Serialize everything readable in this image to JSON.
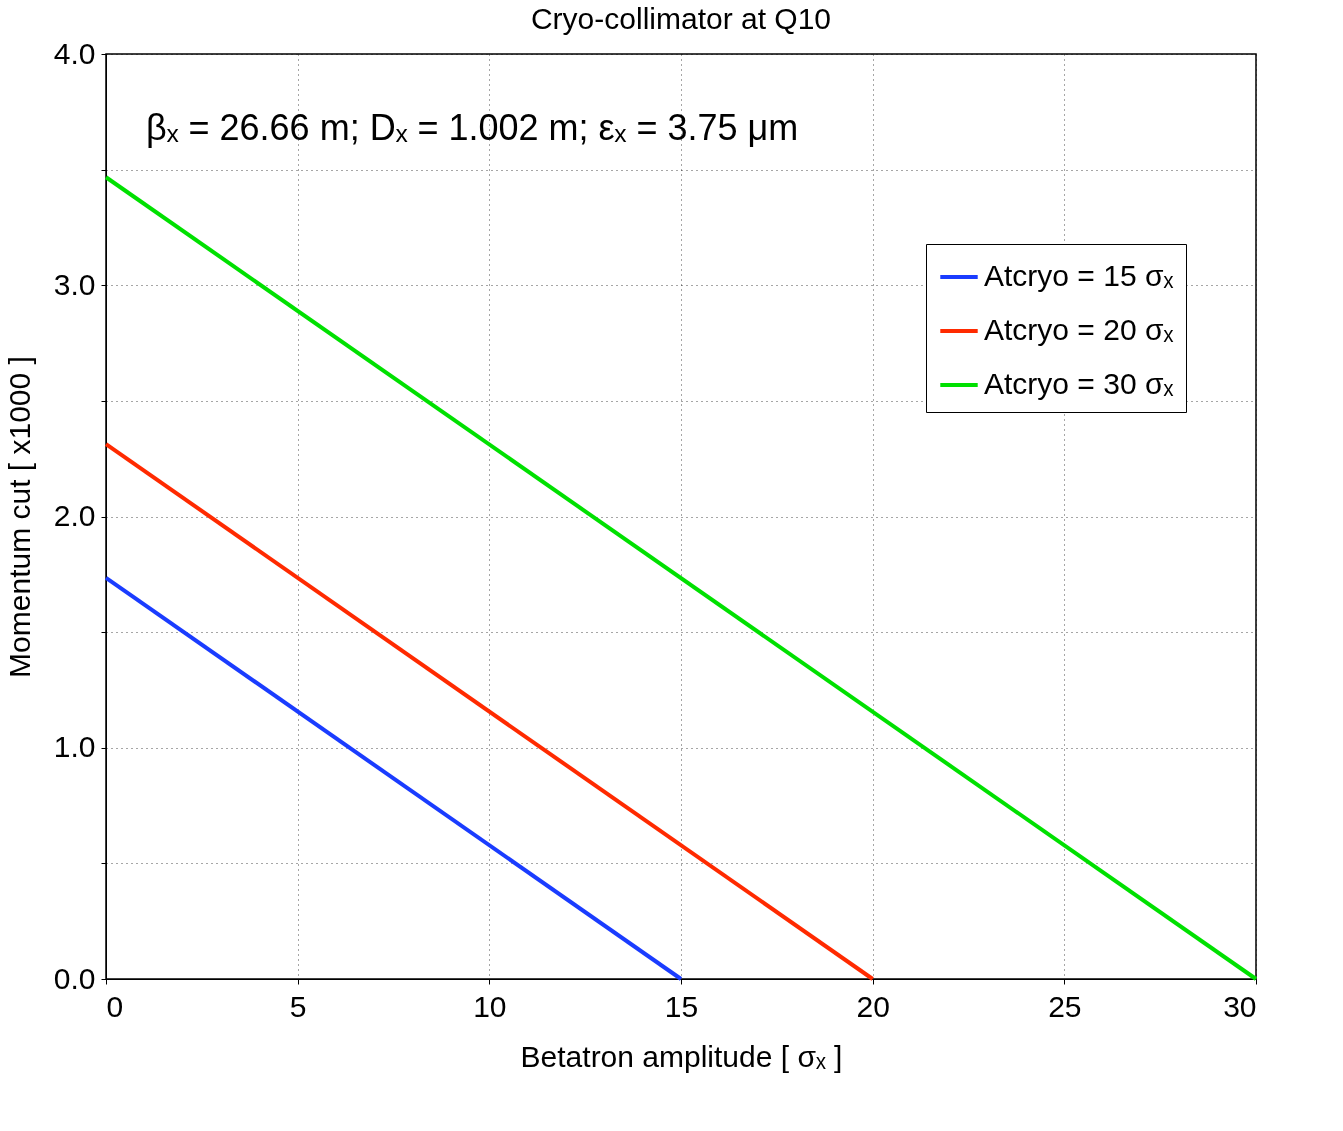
{
  "chart_data": {
    "type": "line",
    "title": "Cryo-collimator at Q10",
    "xlabel": "Betatron amplitude [ σₓ ]",
    "ylabel": "Momentum cut [ x1000 ]",
    "annotations": [
      "βₓ = 26.66 m; Dₓ = 1.002 m; εₓ = 3.75 μm"
    ],
    "series": [
      {
        "name": "Atcryo = 15 σₓ",
        "color": "#1a3cff",
        "x": [
          0,
          15
        ],
        "values": [
          1.735,
          0
        ]
      },
      {
        "name": "Atcryo = 20 σₓ",
        "color": "#ff2a00",
        "x": [
          0,
          20
        ],
        "values": [
          2.313,
          0
        ]
      },
      {
        "name": "Atcryo = 30 σₓ",
        "color": "#00e000",
        "x": [
          0,
          30
        ],
        "values": [
          3.467,
          0
        ]
      }
    ],
    "xlim": [
      0,
      30
    ],
    "xticks": [
      0,
      5,
      10,
      15,
      20,
      25,
      30
    ],
    "ylim": [
      0,
      4
    ],
    "yticks": [
      {
        "value": 0,
        "label": "0.0"
      },
      {
        "value": 0.5,
        "label": null
      },
      {
        "value": 1,
        "label": "1.0"
      },
      {
        "value": 1.5,
        "label": null
      },
      {
        "value": 2,
        "label": "2.0"
      },
      {
        "value": 2.5,
        "label": null
      },
      {
        "value": 3,
        "label": "3.0"
      },
      {
        "value": 3.5,
        "label": null
      },
      {
        "value": 4,
        "label": "4.0"
      }
    ],
    "grid": true,
    "legend": "top right",
    "marker": "none",
    "line_style": "solid"
  }
}
